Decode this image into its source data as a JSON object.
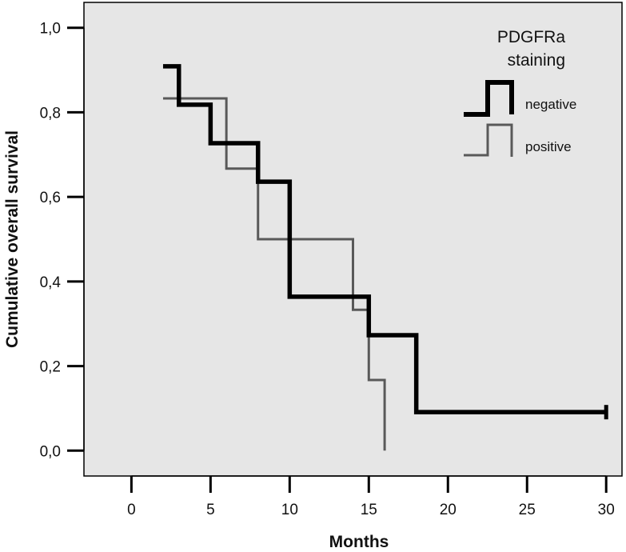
{
  "chart_data": {
    "type": "line",
    "subtype": "kaplan-meier-step",
    "xlabel": "Months",
    "ylabel": "Cumulative overall survival",
    "xlim": [
      -3,
      31
    ],
    "ylim": [
      -0.06,
      1.06
    ],
    "x_ticks": [
      0,
      5,
      10,
      15,
      20,
      25,
      30
    ],
    "x_tick_labels": [
      "0",
      "5",
      "10",
      "15",
      "20",
      "25",
      "30"
    ],
    "y_ticks": [
      0.0,
      0.2,
      0.4,
      0.6,
      0.8,
      1.0
    ],
    "y_tick_labels": [
      "0,0",
      "0,2",
      "0,4",
      "0,6",
      "0,8",
      "1,0"
    ],
    "grid": false,
    "plot_background": "#e6e6e6",
    "legend": {
      "title_lines": [
        "PDGFRa",
        "staining"
      ],
      "placement": "top-right"
    },
    "series": [
      {
        "name": "negative",
        "color": "#000000",
        "weight": "thick",
        "points": [
          [
            2,
            0.909
          ],
          [
            3,
            0.818
          ],
          [
            5,
            0.727
          ],
          [
            8,
            0.636
          ],
          [
            10,
            0.364
          ],
          [
            15,
            0.273
          ],
          [
            18,
            0.091
          ],
          [
            30,
            0.091
          ]
        ],
        "censored": [
          [
            30,
            0.091
          ]
        ]
      },
      {
        "name": "positive",
        "color": "#595959",
        "weight": "thin",
        "points": [
          [
            2,
            0.833
          ],
          [
            6,
            0.667
          ],
          [
            8,
            0.5
          ],
          [
            14,
            0.333
          ],
          [
            15,
            0.167
          ],
          [
            16,
            0.0
          ]
        ],
        "censored": []
      }
    ]
  }
}
